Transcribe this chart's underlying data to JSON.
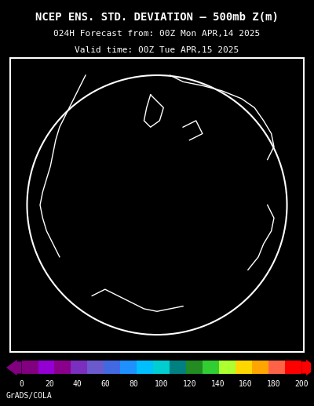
{
  "title_line1": "NCEP ENS. STD. DEVIATION – 500mb Z(m)",
  "title_line2": "024H Forecast from: 00Z Mon APR,14 2025",
  "title_line3": "Valid time: 00Z Tue APR,15 2025",
  "background_color": "#000000",
  "map_bg_color": "#9b009b",
  "colorbar_colors": [
    "#800080",
    "#9400d3",
    "#8b008b",
    "#7b2fbe",
    "#6a5acd",
    "#4169e1",
    "#1e90ff",
    "#00bfff",
    "#00ced1",
    "#008080",
    "#228b22",
    "#32cd32",
    "#adff2f",
    "#ffd700",
    "#ffa500",
    "#ff6347",
    "#ff0000"
  ],
  "colorbar_labels": [
    "0",
    "20",
    "40",
    "60",
    "80",
    "100",
    "120",
    "140",
    "160",
    "180",
    "200"
  ],
  "grads_label": "GrADS/COLA",
  "contour_color": "#000000",
  "grid_color": "#c8c8c8",
  "coast_color": "#ffffff",
  "title_color": "#ffffff",
  "label_color": "#ffffff",
  "fill_colors": [
    "#9b009b",
    "#7b2fbe",
    "#5555cc",
    "#4488dd",
    "#22aaee",
    "#00ccff"
  ],
  "fill_levels": [
    0,
    20,
    40,
    60,
    80,
    100,
    120
  ]
}
